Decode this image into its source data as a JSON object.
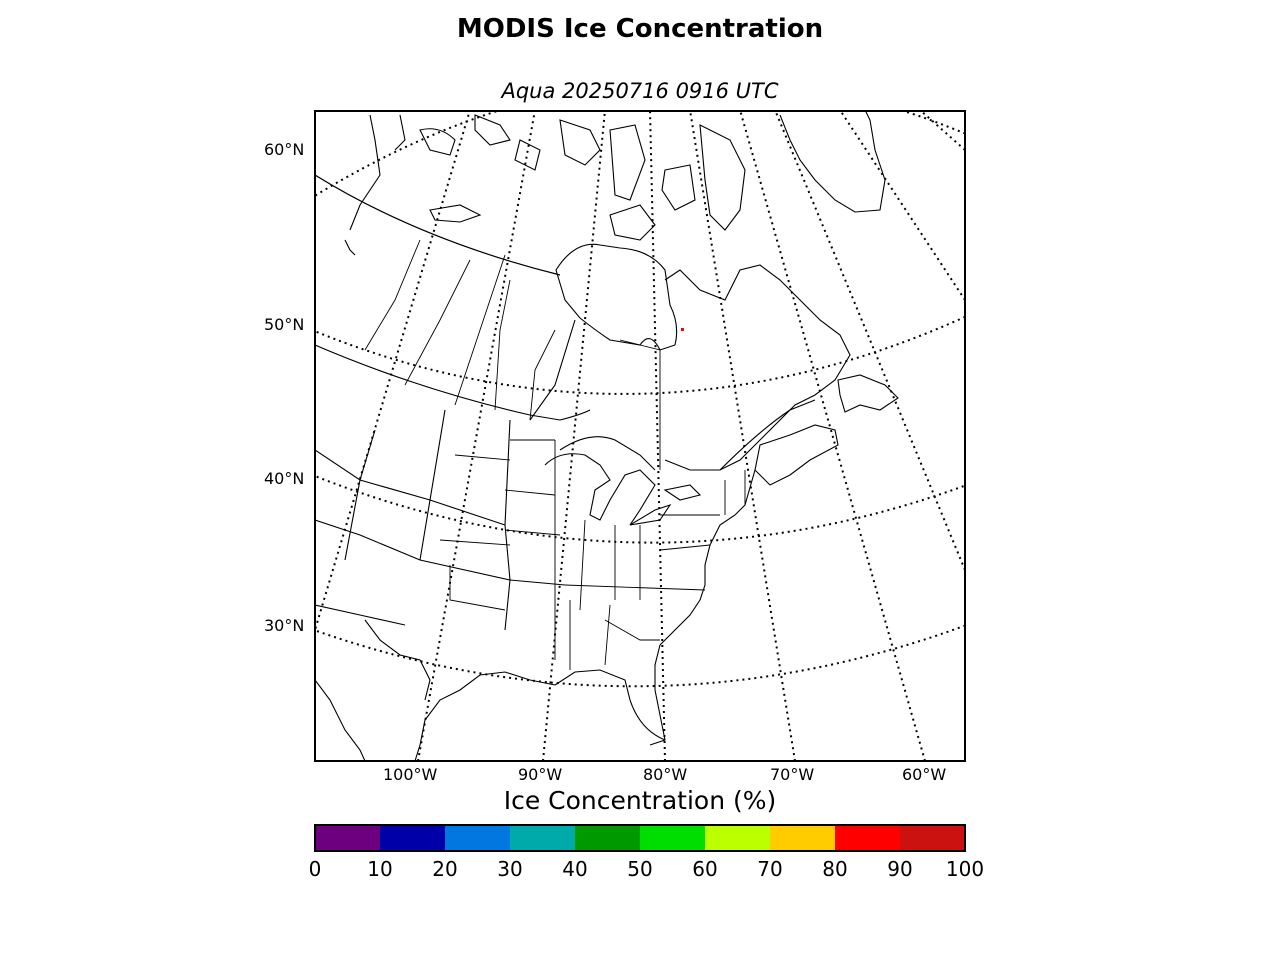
{
  "title": "MODIS Ice Concentration",
  "subtitle": "Aqua 20250716 0916 UTC",
  "map": {
    "lat_labels": [
      "60°N",
      "50°N",
      "40°N",
      "30°N"
    ],
    "lon_labels": [
      "100°W",
      "90°W",
      "80°W",
      "70°W",
      "60°W"
    ],
    "land_fill": "#ffffff",
    "coastline_color": "#000000",
    "graticule_style": "dotted",
    "ice_pixel_color": "#ff0000"
  },
  "colorbar": {
    "label": "Ice Concentration (%)",
    "ticks": [
      "0",
      "10",
      "20",
      "30",
      "40",
      "50",
      "60",
      "70",
      "80",
      "90",
      "100"
    ],
    "colors": [
      "#6d007f",
      "#0000a8",
      "#0078e0",
      "#00aaaa",
      "#009900",
      "#00dd00",
      "#bbff00",
      "#ffcc00",
      "#ff0000",
      "#cc1111"
    ]
  }
}
